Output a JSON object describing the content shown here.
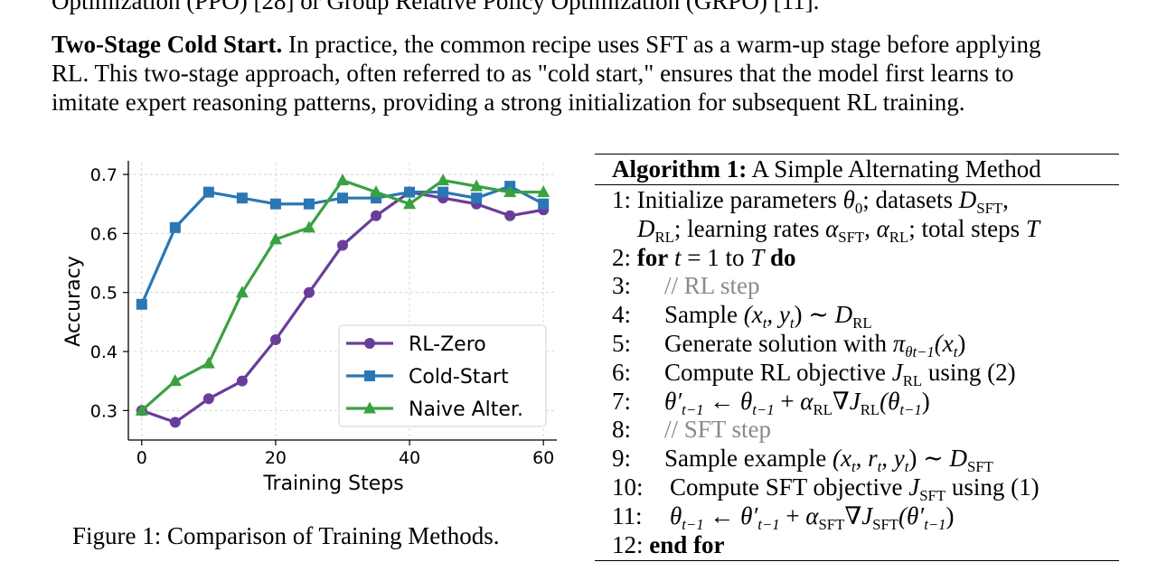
{
  "top_line": "Optimization (PPO) [28] or Group Relative Policy Optimization (GRPO) [11].",
  "paragraph": {
    "lead": "Two-Stage Cold Start.",
    "line1_rest": " In practice, the common recipe uses SFT as a warm-up stage before applying",
    "line2": "RL. This two-stage approach, often referred to as \"cold start,\" ensures that the model first learns to",
    "line3": "imitate expert reasoning patterns, providing a strong initialization for subsequent RL training."
  },
  "figure_caption": "Figure 1: Comparison of Training Methods.",
  "chart_data": {
    "type": "line",
    "title": "",
    "xlabel": "Training Steps",
    "ylabel": "Accuracy",
    "xlim": [
      -2,
      62
    ],
    "ylim": [
      0.25,
      0.72
    ],
    "xticks": [
      0,
      20,
      40,
      60
    ],
    "yticks": [
      0.3,
      0.4,
      0.5,
      0.6,
      0.7
    ],
    "grid": true,
    "legend_position": "lower right",
    "x": [
      0,
      5,
      10,
      15,
      20,
      25,
      30,
      35,
      40,
      45,
      50,
      55,
      60
    ],
    "series": [
      {
        "name": "RL-Zero",
        "color": "#6a3d9a",
        "marker": "circle",
        "values": [
          0.3,
          0.28,
          0.32,
          0.35,
          0.42,
          0.5,
          0.58,
          0.63,
          0.67,
          0.66,
          0.65,
          0.63,
          0.64
        ]
      },
      {
        "name": "Cold-Start",
        "color": "#2a77b4",
        "marker": "square",
        "values": [
          0.48,
          0.61,
          0.67,
          0.66,
          0.65,
          0.65,
          0.66,
          0.66,
          0.67,
          0.67,
          0.66,
          0.68,
          0.65
        ]
      },
      {
        "name": "Naive Alter.",
        "color": "#3aa142",
        "marker": "triangle",
        "values": [
          0.3,
          0.35,
          0.38,
          0.5,
          0.59,
          0.61,
          0.69,
          0.67,
          0.65,
          0.69,
          0.68,
          0.67,
          0.67
        ]
      }
    ]
  },
  "algorithm": {
    "title_bold": "Algorithm 1:",
    "title_rest": " A Simple Alternating Method",
    "line_numbers": [
      "1:",
      "",
      "2:",
      "3:",
      "4:",
      "5:",
      "6:",
      "7:",
      "8:",
      "9:",
      "10:",
      "11:",
      "12:"
    ],
    "l1_text": "Initialize parameters ",
    "l1_theta": "θ",
    "l1_theta_sub": "0",
    "l1_mid": "; datasets ",
    "l1_D": "D",
    "l1_D_sub": "SFT",
    "l1_end": ",",
    "l1b_D": "D",
    "l1b_D_sub": "RL",
    "l1b_mid": "; learning rates ",
    "l1b_alpha1": "α",
    "l1b_alpha1_sub": "SFT",
    "l1b_comma": ", ",
    "l1b_alpha2": "α",
    "l1b_alpha2_sub": "RL",
    "l1b_tail": "; total steps ",
    "l1b_T": "T",
    "l2_for": "for",
    "l2_t": "t",
    "l2_eq": " = 1 to ",
    "l2_T": "T",
    "l2_do": "do",
    "l3_comment": "// RL step",
    "l4_text": "Sample ",
    "l4_expr": "(x",
    "l4_expr_sub": "t",
    "l4_expr2": ", y",
    "l4_expr2_sub": "t",
    "l4_expr3": ") ∼ ",
    "l4_D": "D",
    "l4_D_sub": "RL",
    "l5_text": "Generate solution with ",
    "l5_pi": "π",
    "l5_pi_sub": "θt−1",
    "l5_arg": "(x",
    "l5_arg_sub": "t",
    "l5_close": ")",
    "l6_text": "Compute RL objective ",
    "l6_J": "J",
    "l6_J_sub": "RL",
    "l6_tail": " using (2)",
    "l7_lhs": "θ′",
    "l7_lhs_sub": "t−1",
    "l7_arrow": " ← ",
    "l7_th": "θ",
    "l7_th_sub": "t−1",
    "l7_plus": " + ",
    "l7_a": "α",
    "l7_a_sub": "RL",
    "l7_grad": "∇",
    "l7_J": "J",
    "l7_J_sub": "RL",
    "l7_arg": "(θ",
    "l7_arg_sub": "t−1",
    "l7_close": ")",
    "l8_comment": "// SFT step",
    "l9_text": "Sample example ",
    "l9_expr": "(x",
    "l9_s1": "t",
    "l9_e2": ", r",
    "l9_s2": "t",
    "l9_e3": ", y",
    "l9_s3": "t",
    "l9_e4": ") ∼ ",
    "l9_D": "D",
    "l9_D_sub": "SFT",
    "l10_text": "Compute SFT objective ",
    "l10_J": "J",
    "l10_J_sub": "SFT",
    "l10_tail": " using (1)",
    "l11_lhs": "θ",
    "l11_lhs_sub": "t−1",
    "l11_arrow": " ← ",
    "l11_th": "θ′",
    "l11_th_sub": "t−1",
    "l11_plus": " + ",
    "l11_a": "α",
    "l11_a_sub": "SFT",
    "l11_grad": "∇",
    "l11_J": "J",
    "l11_J_sub": "SFT",
    "l11_arg": "(θ′",
    "l11_arg_sub": "t−1",
    "l11_close": ")",
    "l12_end": "end for"
  }
}
